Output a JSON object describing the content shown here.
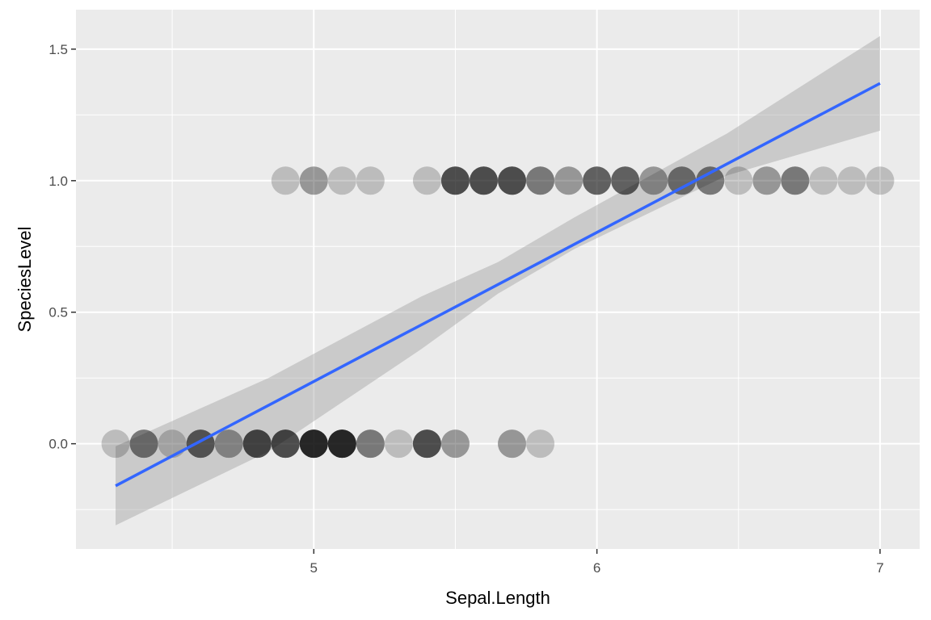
{
  "chart_data": {
    "type": "scatter",
    "title": "",
    "xlabel": "Sepal.Length",
    "ylabel": "SpeciesLevel",
    "xlim": [
      4.16,
      7.14
    ],
    "ylim": [
      -0.4,
      1.65
    ],
    "x_ticks": [
      5,
      6,
      7
    ],
    "x_tick_labels": [
      "5",
      "6",
      "7"
    ],
    "y_ticks": [
      0.0,
      0.5,
      1.0,
      1.5
    ],
    "y_tick_labels": [
      "0.0",
      "0.5",
      "1.0",
      "1.5"
    ],
    "grid": true,
    "legend": "none",
    "colors": {
      "panel_background": "#ebebeb",
      "grid_line": "#ffffff",
      "point": "#000000",
      "fit_line": "#3366ff",
      "confidence_band": "#999999"
    },
    "points": [
      {
        "x": 4.3,
        "y": 0,
        "count": 1
      },
      {
        "x": 4.4,
        "y": 0,
        "count": 3
      },
      {
        "x": 4.5,
        "y": 0,
        "count": 1
      },
      {
        "x": 4.6,
        "y": 0,
        "count": 4
      },
      {
        "x": 4.7,
        "y": 0,
        "count": 2
      },
      {
        "x": 4.8,
        "y": 0,
        "count": 5
      },
      {
        "x": 4.9,
        "y": 0,
        "count": 5
      },
      {
        "x": 5.0,
        "y": 0,
        "count": 8
      },
      {
        "x": 5.1,
        "y": 0,
        "count": 8
      },
      {
        "x": 5.2,
        "y": 0,
        "count": 3
      },
      {
        "x": 5.3,
        "y": 0,
        "count": 1
      },
      {
        "x": 5.4,
        "y": 0,
        "count": 5
      },
      {
        "x": 5.5,
        "y": 0,
        "count": 2
      },
      {
        "x": 5.7,
        "y": 0,
        "count": 2
      },
      {
        "x": 5.8,
        "y": 0,
        "count": 1
      },
      {
        "x": 4.9,
        "y": 1,
        "count": 1
      },
      {
        "x": 5.0,
        "y": 1,
        "count": 2
      },
      {
        "x": 5.1,
        "y": 1,
        "count": 1
      },
      {
        "x": 5.2,
        "y": 1,
        "count": 1
      },
      {
        "x": 5.4,
        "y": 1,
        "count": 1
      },
      {
        "x": 5.5,
        "y": 1,
        "count": 5
      },
      {
        "x": 5.6,
        "y": 1,
        "count": 5
      },
      {
        "x": 5.7,
        "y": 1,
        "count": 5
      },
      {
        "x": 5.8,
        "y": 1,
        "count": 3
      },
      {
        "x": 5.9,
        "y": 1,
        "count": 2
      },
      {
        "x": 6.0,
        "y": 1,
        "count": 4
      },
      {
        "x": 6.1,
        "y": 1,
        "count": 4
      },
      {
        "x": 6.2,
        "y": 1,
        "count": 2
      },
      {
        "x": 6.3,
        "y": 1,
        "count": 3
      },
      {
        "x": 6.4,
        "y": 1,
        "count": 3
      },
      {
        "x": 6.5,
        "y": 1,
        "count": 1
      },
      {
        "x": 6.6,
        "y": 1,
        "count": 2
      },
      {
        "x": 6.7,
        "y": 1,
        "count": 3
      },
      {
        "x": 6.8,
        "y": 1,
        "count": 1
      },
      {
        "x": 6.9,
        "y": 1,
        "count": 1
      },
      {
        "x": 7.0,
        "y": 1,
        "count": 1
      }
    ],
    "fit_line": {
      "x": [
        4.3,
        7.0
      ],
      "y": [
        -0.16,
        1.37
      ]
    },
    "confidence_band": {
      "x": [
        4.3,
        4.84,
        5.38,
        5.65,
        5.92,
        6.46,
        7.0
      ],
      "lower": [
        -0.31,
        -0.03,
        0.36,
        0.57,
        0.74,
        1.02,
        1.19
      ],
      "upper": [
        -0.01,
        0.25,
        0.56,
        0.69,
        0.86,
        1.18,
        1.55
      ]
    }
  }
}
